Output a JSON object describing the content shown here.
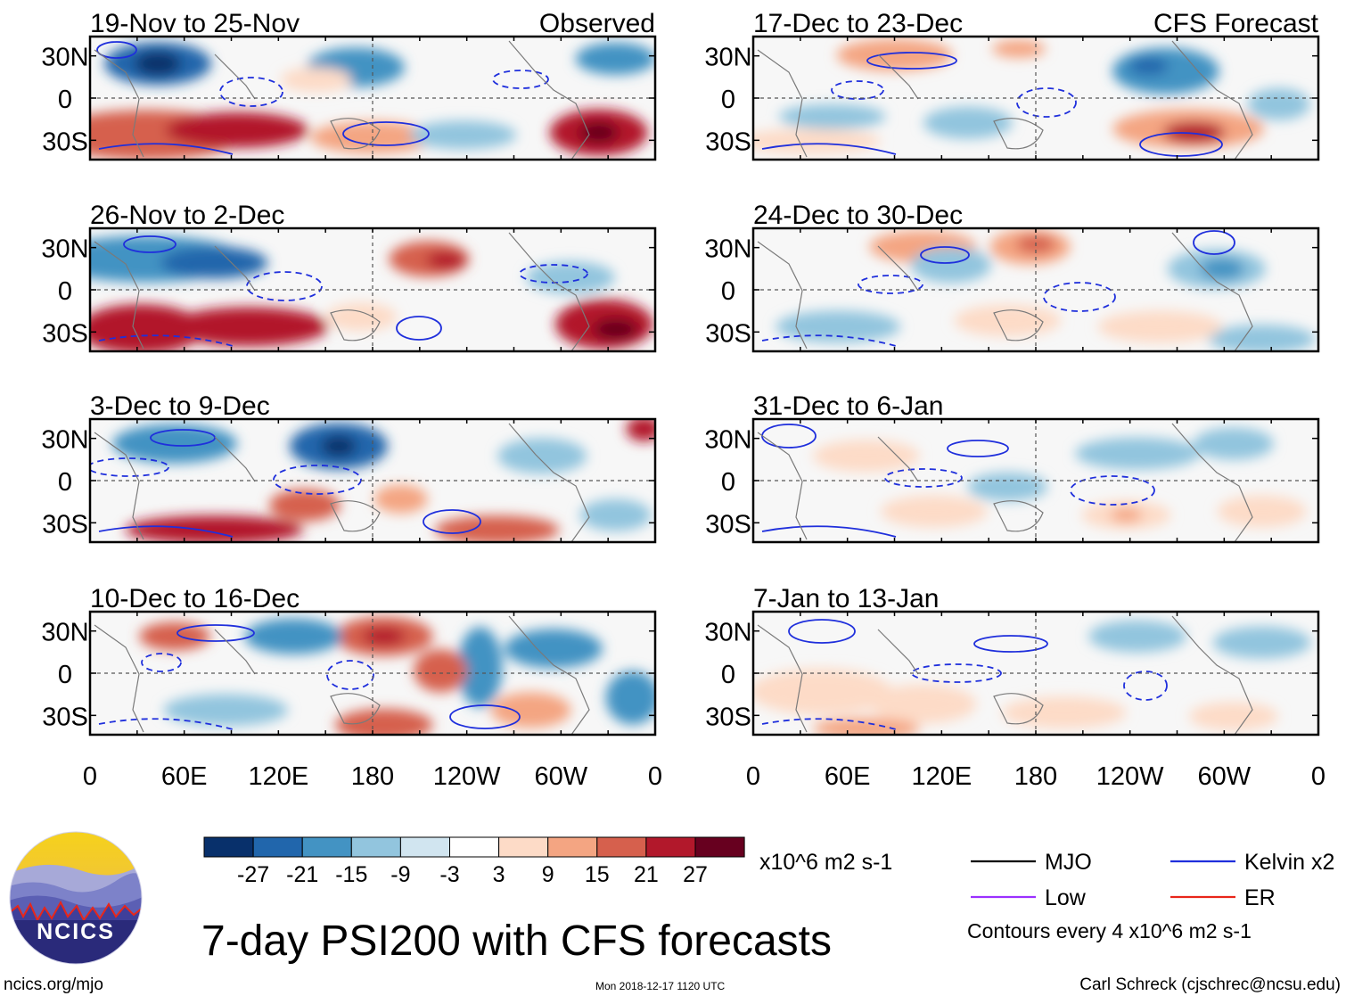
{
  "title": "7-day PSI200 with CFS forecasts",
  "left_header": "Observed",
  "right_header": "CFS Forecast",
  "lat_labels": [
    "30N",
    "0",
    "30S"
  ],
  "lon_labels": [
    "0",
    "60E",
    "120E",
    "180",
    "120W",
    "60W",
    "0"
  ],
  "colorbar": {
    "unit": "x10^6 m2 s-1",
    "tick_labels": [
      "-27",
      "-21",
      "-15",
      "-9",
      "-3",
      "3",
      "9",
      "15",
      "21",
      "27"
    ],
    "colors": [
      "#08306b",
      "#2166ac",
      "#4393c3",
      "#92c5de",
      "#d1e5f0",
      "#ffffff",
      "#fddbc7",
      "#f4a582",
      "#d6604d",
      "#b2182b",
      "#67001f"
    ]
  },
  "legend": {
    "items": [
      {
        "label": "MJO",
        "color": "#000000"
      },
      {
        "label": "Kelvin x2",
        "color": "#1f2fdc"
      },
      {
        "label": "Low",
        "color": "#9b30ff"
      },
      {
        "label": "ER",
        "color": "#e8261a"
      }
    ],
    "contour_note": "Contours every 4 x10^6 m2 s-1"
  },
  "footer": {
    "website": "ncics.org/mjo",
    "timestamp": "Mon 2018-12-17 1120 UTC",
    "author": "Carl Schreck (cjschrec@ncsu.edu)"
  },
  "logo": {
    "text": "NCICS"
  },
  "chart_data": {
    "type": "heatmap",
    "variable": "7-day PSI200 anomaly",
    "units": "x10^6 m2 s-1",
    "color_levels": [
      -27,
      -21,
      -15,
      -9,
      -3,
      3,
      9,
      15,
      21,
      27
    ],
    "xlim": [
      0,
      360
    ],
    "ylim": [
      -40,
      40
    ],
    "x_ticks": [
      "0",
      "60E",
      "120E",
      "180",
      "120W",
      "60W",
      "0"
    ],
    "y_ticks": [
      "30N",
      "0",
      "30S"
    ],
    "panels": [
      {
        "column": "Observed",
        "period": "19-Nov to 25-Nov"
      },
      {
        "column": "Observed",
        "period": "26-Nov to 2-Dec"
      },
      {
        "column": "Observed",
        "period": "3-Dec to 9-Dec"
      },
      {
        "column": "Observed",
        "period": "10-Dec to 16-Dec"
      },
      {
        "column": "CFS Forecast",
        "period": "17-Dec to 23-Dec"
      },
      {
        "column": "CFS Forecast",
        "period": "24-Dec to 30-Dec"
      },
      {
        "column": "CFS Forecast",
        "period": "31-Dec to 6-Jan"
      },
      {
        "column": "CFS Forecast",
        "period": "7-Jan to 13-Jan"
      }
    ]
  }
}
